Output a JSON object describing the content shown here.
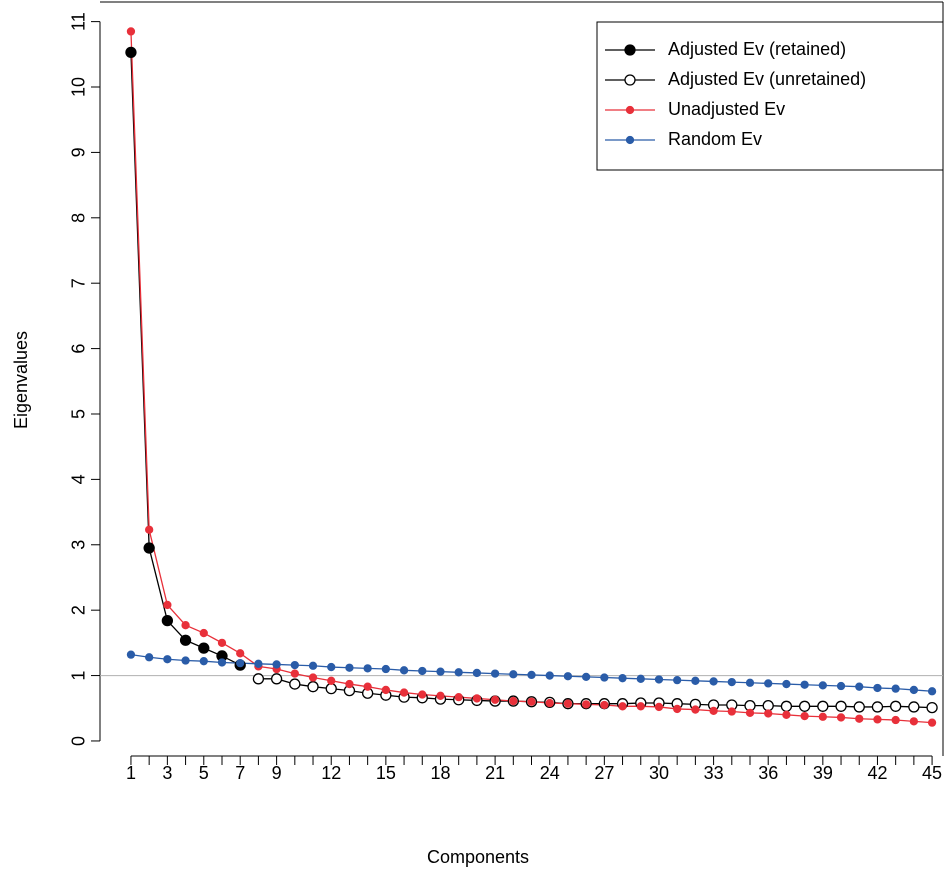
{
  "chart_data": {
    "type": "line",
    "x_label": "Components",
    "y_label": "Eigenvalues",
    "x": [
      1,
      2,
      3,
      4,
      5,
      6,
      7,
      8,
      9,
      10,
      11,
      12,
      13,
      14,
      15,
      16,
      17,
      18,
      19,
      20,
      21,
      22,
      23,
      24,
      25,
      26,
      27,
      28,
      29,
      30,
      31,
      32,
      33,
      34,
      35,
      36,
      37,
      38,
      39,
      40,
      41,
      42,
      43,
      44,
      45
    ],
    "series": [
      {
        "name": "Adjusted Ev (retained)",
        "color": "#000000",
        "point": "filled",
        "values": [
          10.53,
          2.95,
          1.84,
          1.54,
          1.42,
          1.3,
          1.16,
          null,
          null,
          null,
          null,
          null,
          null,
          null,
          null,
          null,
          null,
          null,
          null,
          null,
          null,
          null,
          null,
          null,
          null,
          null,
          null,
          null,
          null,
          null,
          null,
          null,
          null,
          null,
          null,
          null,
          null,
          null,
          null,
          null,
          null,
          null,
          null,
          null,
          null
        ]
      },
      {
        "name": "Adjusted Ev (unretained)",
        "color": "#000000",
        "point": "open",
        "values": [
          null,
          null,
          null,
          null,
          null,
          null,
          null,
          0.95,
          0.95,
          0.87,
          0.83,
          0.8,
          0.77,
          0.73,
          0.7,
          0.67,
          0.66,
          0.64,
          0.63,
          0.62,
          0.61,
          0.61,
          0.6,
          0.59,
          0.57,
          0.57,
          0.57,
          0.57,
          0.58,
          0.58,
          0.57,
          0.56,
          0.55,
          0.55,
          0.54,
          0.54,
          0.53,
          0.53,
          0.53,
          0.53,
          0.52,
          0.52,
          0.53,
          0.52,
          0.51
        ]
      },
      {
        "name": "Unadjusted Ev",
        "color": "#e8303a",
        "point": "dot",
        "values": [
          10.85,
          3.23,
          2.08,
          1.77,
          1.65,
          1.5,
          1.34,
          1.14,
          1.1,
          1.03,
          0.97,
          0.92,
          0.87,
          0.83,
          0.78,
          0.74,
          0.71,
          0.69,
          0.67,
          0.65,
          0.63,
          0.61,
          0.6,
          0.58,
          0.57,
          0.56,
          0.55,
          0.53,
          0.53,
          0.52,
          0.49,
          0.48,
          0.46,
          0.45,
          0.43,
          0.42,
          0.4,
          0.38,
          0.37,
          0.36,
          0.34,
          0.33,
          0.32,
          0.3,
          0.28
        ]
      },
      {
        "name": "Random Ev",
        "color": "#2a5ca8",
        "point": "dot",
        "values": [
          1.32,
          1.28,
          1.25,
          1.23,
          1.22,
          1.2,
          1.19,
          1.18,
          1.17,
          1.16,
          1.15,
          1.13,
          1.12,
          1.11,
          1.1,
          1.08,
          1.07,
          1.06,
          1.05,
          1.04,
          1.03,
          1.02,
          1.01,
          1.0,
          0.99,
          0.98,
          0.97,
          0.96,
          0.95,
          0.94,
          0.93,
          0.92,
          0.91,
          0.9,
          0.89,
          0.88,
          0.87,
          0.86,
          0.85,
          0.84,
          0.83,
          0.81,
          0.8,
          0.78,
          0.76
        ]
      }
    ],
    "xlim": [
      -0.7,
      45.6
    ],
    "ylim": [
      -0.23,
      11.3
    ],
    "xticks": [
      1,
      3,
      5,
      7,
      9,
      12,
      15,
      18,
      21,
      24,
      27,
      30,
      33,
      36,
      39,
      42,
      45
    ],
    "yticks": [
      0,
      1,
      2,
      3,
      4,
      5,
      6,
      7,
      8,
      9,
      10,
      11
    ],
    "hline": 1,
    "legend": "topright"
  }
}
